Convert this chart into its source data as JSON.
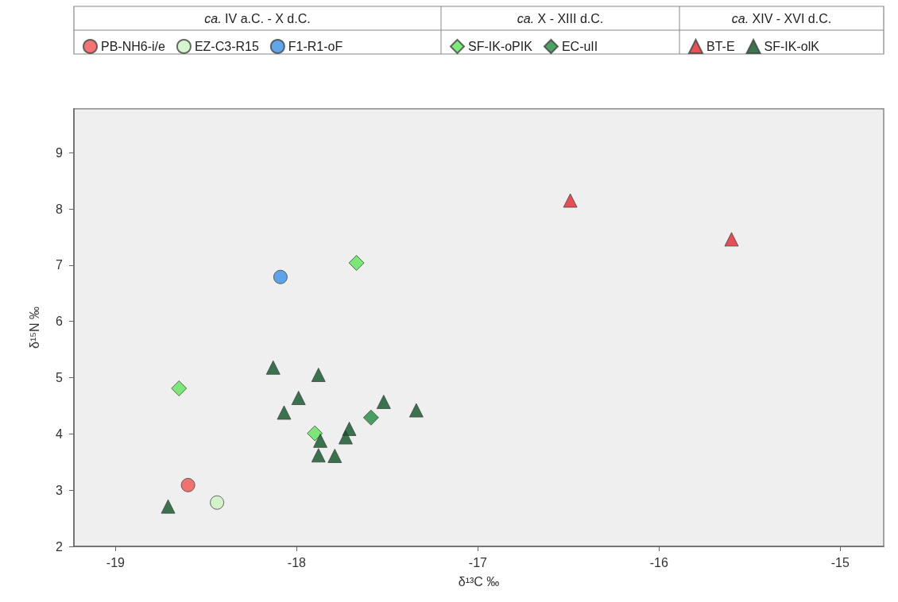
{
  "chart_data": {
    "type": "scatter",
    "xlabel": "δ¹³C ‰",
    "ylabel": "δ¹⁵N ‰",
    "annotations": [
      "ca. IV a.C. - X d.C.",
      "ca. X - XIII d.C.",
      "ca. XIV - XVI d.C."
    ],
    "xlim": [
      -19.23,
      -14.76
    ],
    "xticks": [
      -19,
      -18,
      -17,
      -16,
      -15
    ],
    "ylim": [
      2,
      9.78
    ],
    "yticks": [
      2,
      3,
      4,
      5,
      6,
      7,
      8,
      9
    ],
    "grid": false,
    "legend": "top",
    "series": [
      {
        "name": "PB-NH6-i/e",
        "color": "#ef5350",
        "marker": "circle",
        "x": [
          -18.6
        ],
        "values": [
          3.09
        ]
      },
      {
        "name": "EZ-C3-R15",
        "color": "#c9f2c2",
        "marker": "circle",
        "x": [
          -18.44
        ],
        "values": [
          2.78
        ]
      },
      {
        "name": "F1-R1-oF",
        "color": "#3a8ee6",
        "marker": "circle",
        "x": [
          -18.09
        ],
        "values": [
          6.79
        ]
      },
      {
        "name": "SF-IK-oPIK",
        "color": "#5fe35a",
        "marker": "diamond",
        "x": [
          -18.65,
          -17.9,
          -17.67
        ],
        "values": [
          4.81,
          4.01,
          7.04
        ]
      },
      {
        "name": "EC-uII",
        "color": "#1f8a3c",
        "marker": "diamond",
        "x": [
          -17.59
        ],
        "values": [
          4.29
        ]
      },
      {
        "name": "BT-E",
        "color": "#e3262e",
        "marker": "triangle",
        "x": [
          -16.49,
          -15.6
        ],
        "values": [
          8.15,
          7.46
        ]
      },
      {
        "name": "SF-IK-olK",
        "color": "#0c5225",
        "marker": "triangle",
        "x": [
          -18.71,
          -18.13,
          -17.88,
          -17.99,
          -18.07,
          -17.87,
          -17.88,
          -17.79,
          -17.73,
          -17.71,
          -17.52,
          -17.34
        ],
        "values": [
          2.71,
          5.18,
          5.05,
          4.64,
          4.38,
          3.88,
          3.62,
          3.61,
          3.94,
          4.09,
          4.57,
          4.42
        ]
      }
    ]
  }
}
